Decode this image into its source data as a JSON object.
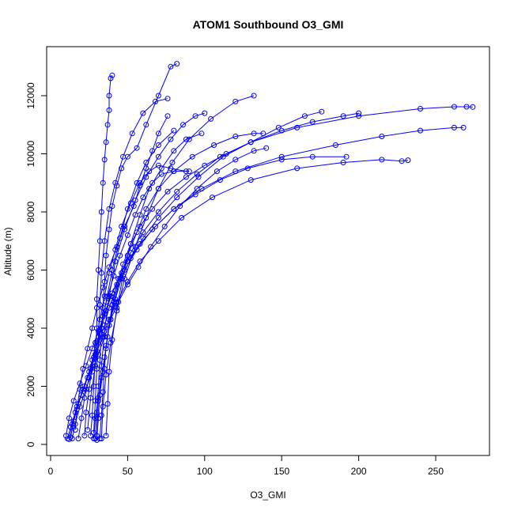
{
  "chart_data": {
    "type": "line",
    "title": "ATOM1 Southbound O3_GMI",
    "xlabel": "O3_GMI",
    "ylabel": "Altitude (m)",
    "xlim": [
      0,
      280
    ],
    "ylim": [
      0,
      13000
    ],
    "xticks": [
      0,
      50,
      100,
      150,
      200,
      250
    ],
    "yticks": [
      0,
      2000,
      4000,
      6000,
      8000,
      10000,
      12000
    ],
    "grid": false,
    "legend": "none",
    "color": "#0000ff",
    "marker": "open-circle",
    "series": [
      {
        "x": [
          11,
          13,
          16,
          20,
          24,
          27,
          30,
          33,
          36,
          40,
          46,
          52,
          60,
          70,
          82,
          95,
          110,
          130,
          160,
          200,
          240,
          262,
          270,
          274
        ],
        "y": [
          200,
          600,
          1100,
          1700,
          2300,
          2900,
          3400,
          4000,
          4600,
          5200,
          5900,
          6600,
          7300,
          8000,
          8700,
          9300,
          9900,
          10400,
          10900,
          11300,
          11550,
          11620,
          11620,
          11610
        ]
      },
      {
        "x": [
          12,
          14,
          17,
          21,
          25,
          29,
          32,
          35,
          38,
          42,
          48,
          56,
          66,
          80,
          98,
          120,
          150,
          185,
          215,
          240,
          262,
          268
        ],
        "y": [
          180,
          700,
          1300,
          1900,
          2500,
          3100,
          3600,
          4100,
          4700,
          5300,
          6000,
          6700,
          7400,
          8100,
          8800,
          9400,
          9900,
          10300,
          10600,
          10800,
          10900,
          10900
        ]
      },
      {
        "x": [
          13,
          15,
          18,
          22,
          26,
          30,
          34,
          38,
          43,
          50,
          58,
          70,
          85,
          105,
          130,
          160,
          190,
          215,
          228,
          232
        ],
        "y": [
          250,
          800,
          1400,
          2000,
          2600,
          3200,
          3700,
          4300,
          4900,
          5600,
          6300,
          7000,
          7800,
          8500,
          9100,
          9500,
          9700,
          9800,
          9750,
          9780
        ]
      },
      {
        "x": [
          28,
          29,
          31,
          33,
          35,
          37,
          39,
          42,
          46,
          52,
          60,
          70,
          82,
          96,
          112,
          130,
          148,
          165,
          176
        ],
        "y": [
          200,
          900,
          1600,
          2300,
          3000,
          3700,
          4300,
          5000,
          5700,
          6400,
          7100,
          7800,
          8500,
          9200,
          9900,
          10400,
          10900,
          11300,
          11450
        ]
      },
      {
        "x": [
          30,
          31,
          32,
          34,
          36,
          38,
          41,
          45,
          50,
          56,
          62,
          70,
          80,
          92,
          106,
          120,
          132,
          138
        ],
        "y": [
          150,
          900,
          1700,
          2500,
          3300,
          4100,
          4900,
          5700,
          6500,
          7300,
          8100,
          8800,
          9400,
          9900,
          10300,
          10600,
          10700,
          10700
        ]
      },
      {
        "x": [
          32,
          33,
          34,
          35,
          36,
          38,
          40,
          43,
          47,
          52,
          58,
          66,
          76,
          88,
          100,
          114,
          130,
          150,
          170,
          190,
          200
        ],
        "y": [
          200,
          1000,
          1800,
          2600,
          3400,
          4100,
          4800,
          5500,
          6200,
          6900,
          7500,
          8100,
          8700,
          9200,
          9600,
          10000,
          10400,
          10800,
          11100,
          11300,
          11400
        ]
      },
      {
        "x": [
          10,
          12,
          15,
          19,
          23,
          27,
          31,
          35,
          39,
          44,
          50,
          58,
          68,
          80,
          94,
          110,
          128,
          150,
          170,
          192
        ],
        "y": [
          300,
          900,
          1500,
          2100,
          2700,
          3300,
          3900,
          4500,
          5100,
          5700,
          6300,
          6900,
          7500,
          8100,
          8600,
          9100,
          9500,
          9800,
          9900,
          9900
        ]
      },
      {
        "x": [
          14,
          16,
          19,
          23,
          27,
          31,
          35,
          39,
          44,
          50,
          57,
          65,
          74,
          84,
          95,
          108,
          120,
          132,
          140
        ],
        "y": [
          200,
          700,
          1300,
          1900,
          2500,
          3100,
          3700,
          4300,
          4900,
          5500,
          6100,
          6800,
          7500,
          8200,
          8800,
          9400,
          9800,
          10100,
          10200
        ]
      },
      {
        "x": [
          26,
          27,
          28,
          29,
          30,
          30,
          31,
          32,
          33,
          34,
          35,
          36,
          37,
          38,
          38,
          39,
          40
        ],
        "y": [
          300,
          1000,
          2000,
          3000,
          4000,
          5000,
          6000,
          7000,
          8000,
          9000,
          9800,
          10400,
          11000,
          11500,
          12000,
          12600,
          12700
        ]
      },
      {
        "x": [
          28,
          29,
          30,
          31,
          32,
          33,
          35,
          38,
          42,
          47,
          53,
          60,
          68,
          76
        ],
        "y": [
          400,
          1500,
          2600,
          3700,
          4800,
          5900,
          7000,
          8100,
          9000,
          9900,
          10700,
          11400,
          11800,
          11900
        ]
      },
      {
        "x": [
          30,
          31,
          33,
          35,
          38,
          42,
          48,
          55,
          62,
          70,
          78,
          86,
          94,
          100
        ],
        "y": [
          300,
          1500,
          2700,
          3900,
          5100,
          6300,
          7400,
          8400,
          9200,
          9900,
          10500,
          11000,
          11300,
          11400
        ]
      },
      {
        "x": [
          33,
          34,
          36,
          39,
          43,
          48,
          55,
          62,
          70,
          79,
          90,
          104,
          120,
          132
        ],
        "y": [
          200,
          1300,
          2400,
          3500,
          4600,
          5700,
          6800,
          7800,
          8800,
          9700,
          10500,
          11200,
          11800,
          12000
        ]
      },
      {
        "x": [
          29,
          30,
          31,
          32,
          33,
          34,
          35,
          36,
          38,
          40,
          43,
          46,
          50,
          56,
          62,
          70,
          78,
          82
        ],
        "y": [
          200,
          1100,
          2000,
          2900,
          3800,
          4700,
          5600,
          6500,
          7400,
          8200,
          8900,
          9500,
          9900,
          10200,
          11000,
          12000,
          13000,
          13100
        ]
      },
      {
        "x": [
          18,
          20,
          22,
          25,
          28,
          31,
          34,
          37,
          41,
          45,
          50,
          55,
          60,
          66,
          72,
          80,
          90
        ],
        "y": [
          200,
          900,
          1600,
          2300,
          3000,
          3700,
          4400,
          5100,
          5800,
          6500,
          7200,
          7900,
          8500,
          9000,
          9300,
          9400,
          9400
        ]
      },
      {
        "x": [
          22,
          23,
          25,
          27,
          29,
          32,
          35,
          38,
          42,
          46,
          52,
          58,
          64,
          70,
          78,
          88
        ],
        "y": [
          300,
          1100,
          1900,
          2700,
          3500,
          4300,
          5100,
          5900,
          6700,
          7500,
          8300,
          9000,
          9400,
          9600,
          9500,
          9400
        ]
      },
      {
        "x": [
          16,
          17,
          19,
          21,
          24,
          27,
          30,
          34,
          38,
          43,
          48,
          54,
          58,
          62,
          66,
          70,
          76
        ],
        "y": [
          500,
          1200,
          1900,
          2600,
          3300,
          4000,
          4700,
          5400,
          6100,
          6800,
          7500,
          8200,
          8900,
          9500,
          10100,
          10700,
          11300
        ]
      },
      {
        "x": [
          36,
          37,
          38,
          40,
          43,
          47,
          52,
          58,
          64,
          72,
          80,
          88,
          98
        ],
        "y": [
          300,
          1400,
          2500,
          3600,
          4700,
          5800,
          6900,
          7900,
          8800,
          9500,
          10100,
          10500,
          10700
        ]
      },
      {
        "x": [
          24,
          26,
          29,
          32,
          36,
          40,
          45,
          50,
          56,
          62,
          70,
          80
        ],
        "y": [
          500,
          1600,
          2700,
          3800,
          4900,
          6000,
          7100,
          8100,
          9000,
          9700,
          10300,
          10800
        ]
      }
    ]
  }
}
